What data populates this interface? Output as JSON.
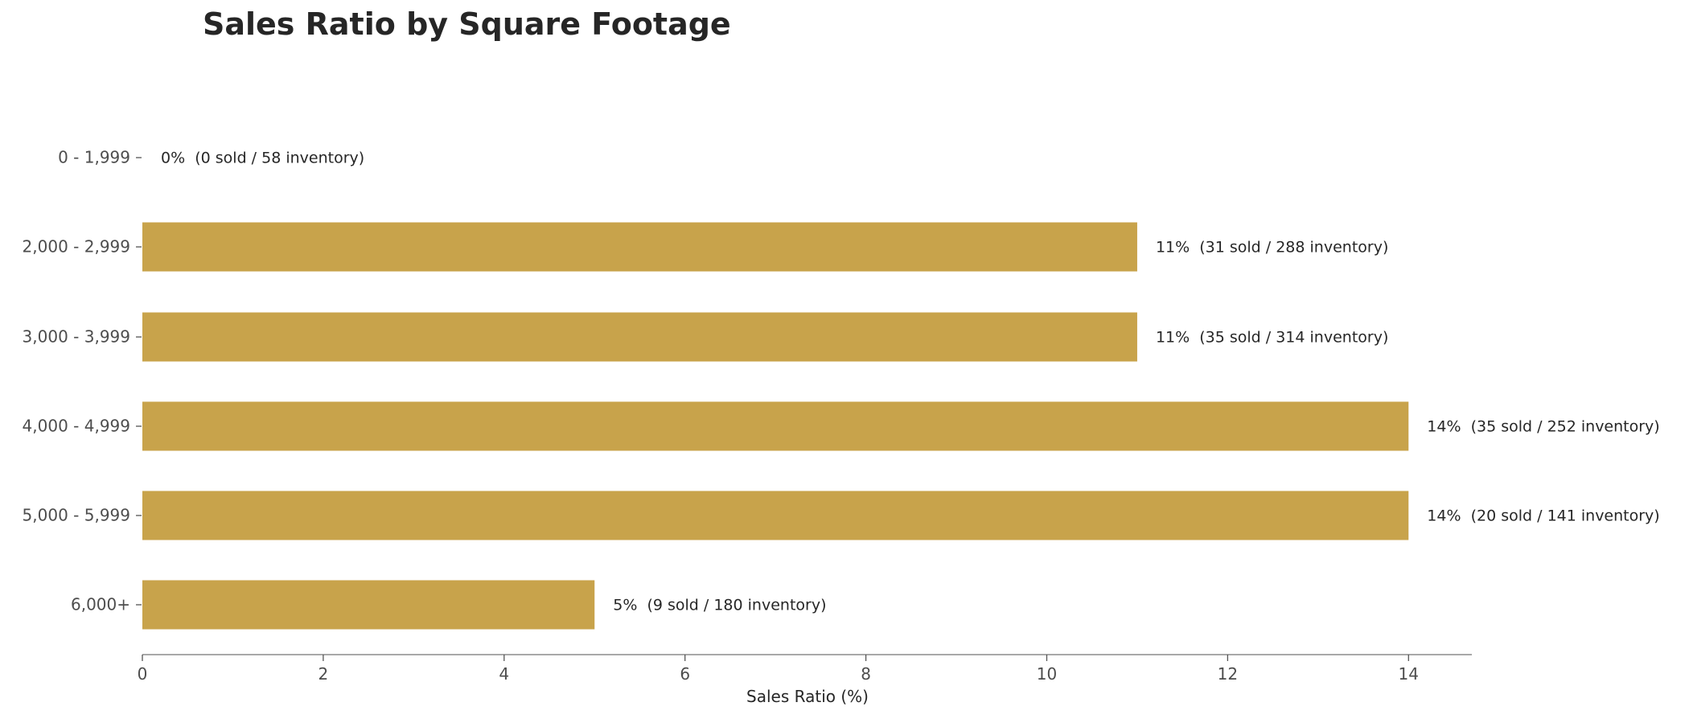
{
  "chart_data": {
    "type": "bar",
    "orientation": "horizontal",
    "title": "Sales Ratio by Square Footage",
    "xlabel": "Sales Ratio (%)",
    "ylabel": "",
    "categories": [
      "0 - 1,999",
      "2,000 - 2,999",
      "3,000 - 3,999",
      "4,000 - 4,999",
      "5,000 - 5,999",
      "6,000+"
    ],
    "values": [
      0,
      11,
      11,
      14,
      14,
      5
    ],
    "data_labels": [
      "0%  (0 sold / 58 inventory)",
      "11%  (31 sold / 288 inventory)",
      "11%  (35 sold / 314 inventory)",
      "14%  (35 sold / 252 inventory)",
      "14%  (20 sold / 141 inventory)",
      "5%  (9 sold / 180 inventory)"
    ],
    "xlim": [
      0,
      14.7
    ],
    "xticks": [
      0,
      2,
      4,
      6,
      8,
      10,
      12,
      14
    ],
    "grid": false,
    "legend": "none",
    "bar_color": "#c8a34b"
  }
}
